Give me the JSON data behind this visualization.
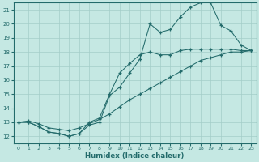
{
  "xlabel": "Humidex (Indice chaleur)",
  "bg_color": "#c5e8e3",
  "grid_color": "#a3cdc8",
  "line_color": "#236b6b",
  "xlim": [
    -0.5,
    23.5
  ],
  "ylim": [
    11.5,
    21.5
  ],
  "yticks": [
    12,
    13,
    14,
    15,
    16,
    17,
    18,
    19,
    20,
    21
  ],
  "xticks": [
    0,
    1,
    2,
    3,
    4,
    5,
    6,
    7,
    8,
    9,
    10,
    11,
    12,
    13,
    14,
    15,
    16,
    17,
    18,
    19,
    20,
    21,
    22,
    23
  ],
  "line_diag_x": [
    0,
    1,
    2,
    3,
    4,
    5,
    6,
    7,
    8,
    9,
    10,
    11,
    12,
    13,
    14,
    15,
    16,
    17,
    18,
    19,
    20,
    21,
    22,
    23
  ],
  "line_diag_y": [
    13.0,
    13.1,
    12.9,
    12.6,
    12.5,
    12.4,
    12.6,
    12.9,
    13.2,
    13.6,
    14.1,
    14.6,
    15.0,
    15.4,
    15.8,
    16.2,
    16.6,
    17.0,
    17.4,
    17.6,
    17.8,
    18.0,
    18.0,
    18.1
  ],
  "line_upper_x": [
    0,
    1,
    2,
    3,
    4,
    5,
    6,
    7,
    8,
    9,
    10,
    11,
    12,
    13,
    14,
    15,
    16,
    17,
    18,
    19,
    20,
    21,
    22,
    23
  ],
  "line_upper_y": [
    13.0,
    13.0,
    12.7,
    12.3,
    12.2,
    12.0,
    12.2,
    12.8,
    13.0,
    14.9,
    15.5,
    16.5,
    17.5,
    20.0,
    19.4,
    19.6,
    20.5,
    21.2,
    21.5,
    21.5,
    19.9,
    19.5,
    18.5,
    18.1
  ],
  "line_mid_x": [
    0,
    1,
    2,
    3,
    4,
    5,
    6,
    7,
    8,
    9,
    10,
    11,
    12,
    13,
    14,
    15,
    16,
    17,
    18,
    19,
    20,
    21,
    22,
    23
  ],
  "line_mid_y": [
    13.0,
    13.0,
    12.7,
    12.3,
    12.2,
    12.0,
    12.2,
    13.0,
    13.3,
    15.0,
    16.5,
    17.2,
    17.8,
    18.0,
    17.8,
    17.8,
    18.1,
    18.2,
    18.2,
    18.2,
    18.2,
    18.2,
    18.1,
    18.1
  ]
}
